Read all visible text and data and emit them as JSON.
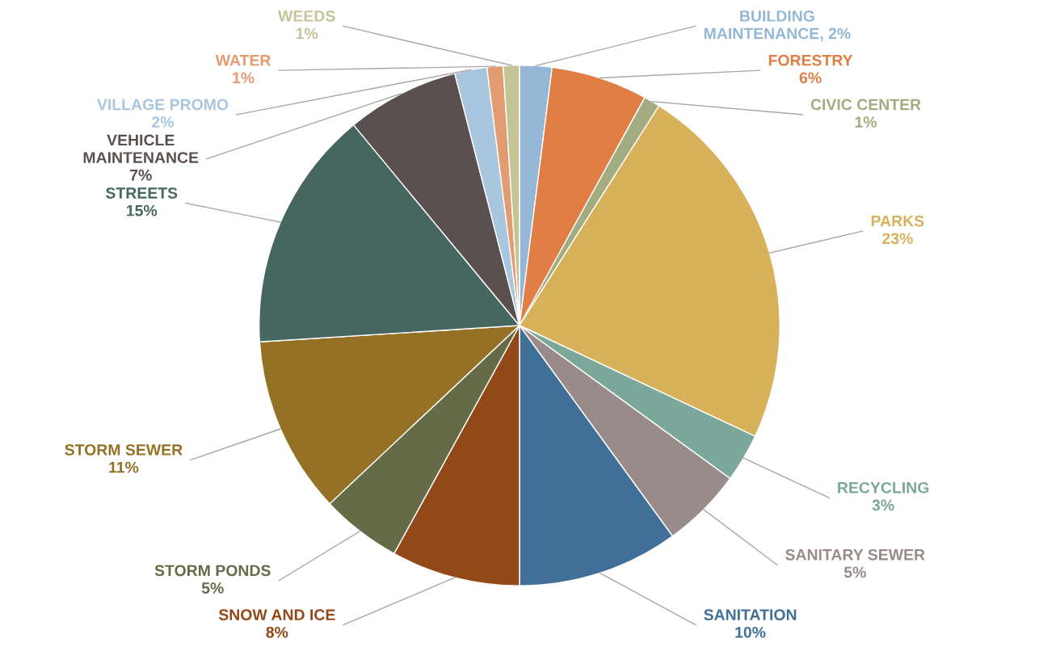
{
  "chart_data": {
    "type": "pie",
    "categories": [
      "BUILDING\nMAINTENANCE, 2%",
      "FORESTRY",
      "CIVIC CENTER",
      "PARKS",
      "RECYCLING",
      "SANITARY SEWER",
      "SANITATION",
      "SNOW AND ICE",
      "STORM PONDS",
      "STORM SEWER",
      "STREETS",
      "VEHICLE\nMAINTENANCE",
      "VILLAGE PROMO",
      "WATER",
      "WEEDS"
    ],
    "values": [
      2,
      6,
      1,
      23,
      3,
      5,
      10,
      8,
      5,
      11,
      15,
      7,
      2,
      1,
      1
    ],
    "value_labels": [
      null,
      "6%",
      "1%",
      "23%",
      "3%",
      "5%",
      "10%",
      "8%",
      "5%",
      "11%",
      "15%",
      "7%",
      "2%",
      "1%",
      "1%"
    ],
    "colors": [
      "#95b7d6",
      "#e07e45",
      "#a3ab80",
      "#d8b25a",
      "#7ba89b",
      "#988b89",
      "#407098",
      "#934819",
      "#646b46",
      "#957125",
      "#45675f",
      "#5b5050",
      "#a9c6df",
      "#e39b72",
      "#c4c496"
    ]
  }
}
